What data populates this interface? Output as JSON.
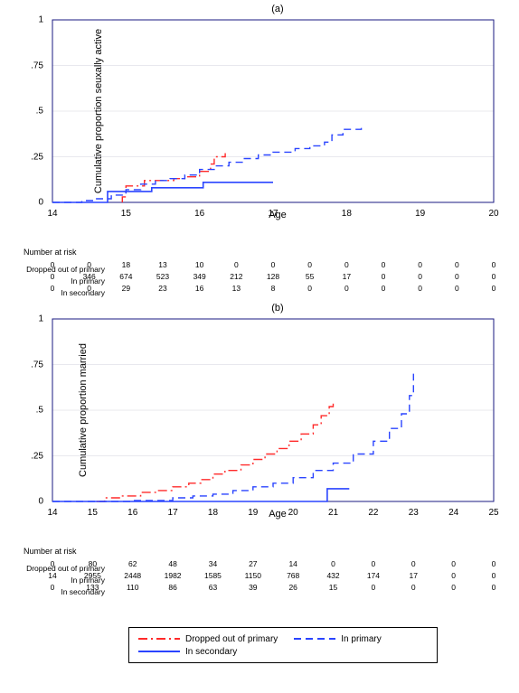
{
  "panel_a": {
    "title": "(a)",
    "type": "step-line",
    "y_label": "Cumulative proportion seuxally active",
    "x_label": "Age",
    "xlim": [
      14,
      20
    ],
    "ylim": [
      0,
      1
    ],
    "y_ticks": [
      "0",
      ".25",
      ".5",
      ".75",
      "1"
    ],
    "y_tick_vals": [
      0,
      0.25,
      0.5,
      0.75,
      1
    ],
    "x_ticks": [
      14,
      15,
      16,
      17,
      18,
      19,
      20
    ],
    "x_tick_step": 1,
    "background_color": "#ffffff",
    "frame_color": "#1a1a80",
    "grid_color": "#e8e8ee",
    "axis_fontsize": 10,
    "label_fontsize": 11,
    "series": [
      {
        "name": "dropped",
        "label": "Dropped out of primary",
        "color": "#ff2a2a",
        "style": "dash-dot",
        "line_width": 1.4,
        "points": [
          [
            14.95,
            0.0
          ],
          [
            14.95,
            0.03
          ],
          [
            15.0,
            0.03
          ],
          [
            15.0,
            0.09
          ],
          [
            15.25,
            0.09
          ],
          [
            15.25,
            0.12
          ],
          [
            15.5,
            0.12
          ],
          [
            15.65,
            0.13
          ],
          [
            15.8,
            0.14
          ],
          [
            16.0,
            0.17
          ],
          [
            16.15,
            0.21
          ],
          [
            16.2,
            0.25
          ],
          [
            16.35,
            0.27
          ]
        ]
      },
      {
        "name": "in_primary",
        "label": "In primary",
        "color": "#2a44ff",
        "style": "dashed",
        "line_width": 1.4,
        "points": [
          [
            14.0,
            0.0
          ],
          [
            14.4,
            0.01
          ],
          [
            14.6,
            0.02
          ],
          [
            14.8,
            0.04
          ],
          [
            15.0,
            0.07
          ],
          [
            15.2,
            0.1
          ],
          [
            15.4,
            0.12
          ],
          [
            15.6,
            0.13
          ],
          [
            15.8,
            0.15
          ],
          [
            16.0,
            0.18
          ],
          [
            16.2,
            0.2
          ],
          [
            16.4,
            0.22
          ],
          [
            16.6,
            0.24
          ],
          [
            16.8,
            0.26
          ],
          [
            17.0,
            0.275
          ],
          [
            17.3,
            0.295
          ],
          [
            17.5,
            0.31
          ],
          [
            17.7,
            0.33
          ],
          [
            17.8,
            0.37
          ],
          [
            17.95,
            0.4
          ],
          [
            18.2,
            0.41
          ]
        ]
      },
      {
        "name": "in_secondary",
        "label": "In secondary",
        "color": "#2a44ff",
        "style": "solid",
        "line_width": 1.6,
        "points": [
          [
            14.0,
            0.0
          ],
          [
            14.7,
            0.0
          ],
          [
            14.75,
            0.06
          ],
          [
            15.3,
            0.06
          ],
          [
            15.35,
            0.08
          ],
          [
            16.0,
            0.08
          ],
          [
            16.05,
            0.11
          ],
          [
            17.0,
            0.11
          ]
        ]
      }
    ],
    "risk_table": {
      "title": "Number at risk",
      "ages": [
        14.0,
        14.5,
        15.0,
        15.5,
        16.0,
        16.5,
        17.0,
        17.5,
        18.0,
        18.5,
        19.0,
        19.5,
        20.0
      ],
      "rows": [
        {
          "label": "Dropped out of primary",
          "values": [
            0,
            0,
            18,
            13,
            10,
            0,
            0,
            0,
            0,
            0,
            0,
            0,
            0
          ]
        },
        {
          "label": "In primary",
          "values": [
            0,
            346,
            674,
            523,
            349,
            212,
            128,
            55,
            17,
            0,
            0,
            0,
            0
          ]
        },
        {
          "label": "In secondary",
          "values": [
            0,
            0,
            29,
            23,
            16,
            13,
            8,
            0,
            0,
            0,
            0,
            0,
            0
          ]
        }
      ]
    }
  },
  "panel_b": {
    "title": "(b)",
    "type": "step-line",
    "y_label": "Cumulative proportion married",
    "x_label": "Age",
    "xlim": [
      14,
      25
    ],
    "ylim": [
      0,
      1
    ],
    "y_ticks": [
      "0",
      ".25",
      ".5",
      ".75",
      "1"
    ],
    "y_tick_vals": [
      0,
      0.25,
      0.5,
      0.75,
      1
    ],
    "x_ticks": [
      14,
      15,
      16,
      17,
      18,
      19,
      20,
      21,
      22,
      23,
      24,
      25
    ],
    "x_tick_step": 1,
    "background_color": "#ffffff",
    "frame_color": "#1a1a80",
    "grid_color": "#e8e8ee",
    "axis_fontsize": 10,
    "label_fontsize": 11,
    "series": [
      {
        "name": "dropped",
        "label": "Dropped out of primary",
        "color": "#ff2a2a",
        "style": "dash-dot",
        "line_width": 1.4,
        "points": [
          [
            15.1,
            0.0
          ],
          [
            15.3,
            0.02
          ],
          [
            15.7,
            0.03
          ],
          [
            16.2,
            0.05
          ],
          [
            16.6,
            0.06
          ],
          [
            17.0,
            0.08
          ],
          [
            17.4,
            0.1
          ],
          [
            17.7,
            0.12
          ],
          [
            18.0,
            0.15
          ],
          [
            18.3,
            0.17
          ],
          [
            18.7,
            0.2
          ],
          [
            19.0,
            0.23
          ],
          [
            19.3,
            0.26
          ],
          [
            19.6,
            0.29
          ],
          [
            19.9,
            0.33
          ],
          [
            20.2,
            0.37
          ],
          [
            20.5,
            0.42
          ],
          [
            20.7,
            0.47
          ],
          [
            20.9,
            0.52
          ],
          [
            21.0,
            0.55
          ]
        ]
      },
      {
        "name": "in_primary",
        "label": "In primary",
        "color": "#2a44ff",
        "style": "dashed",
        "line_width": 1.4,
        "points": [
          [
            14.0,
            0.0
          ],
          [
            16.0,
            0.005
          ],
          [
            17.0,
            0.02
          ],
          [
            17.5,
            0.03
          ],
          [
            18.0,
            0.04
          ],
          [
            18.5,
            0.06
          ],
          [
            19.0,
            0.08
          ],
          [
            19.5,
            0.1
          ],
          [
            20.0,
            0.13
          ],
          [
            20.5,
            0.17
          ],
          [
            21.0,
            0.21
          ],
          [
            21.5,
            0.26
          ],
          [
            22.0,
            0.33
          ],
          [
            22.4,
            0.4
          ],
          [
            22.7,
            0.48
          ],
          [
            22.9,
            0.58
          ],
          [
            23.0,
            0.7
          ]
        ]
      },
      {
        "name": "in_secondary",
        "label": "In secondary",
        "color": "#2a44ff",
        "style": "solid",
        "line_width": 1.6,
        "points": [
          [
            14.0,
            0.0
          ],
          [
            20.8,
            0.0
          ],
          [
            20.85,
            0.07
          ],
          [
            21.4,
            0.07
          ]
        ]
      }
    ],
    "risk_table": {
      "title": "Number at risk",
      "ages": [
        14,
        15,
        16,
        17,
        18,
        19,
        20,
        21,
        22,
        23,
        24,
        25
      ],
      "rows": [
        {
          "label": "Dropped out of primary",
          "values": [
            0,
            80,
            62,
            48,
            34,
            27,
            14,
            0,
            0,
            0,
            0,
            0
          ]
        },
        {
          "label": "In primary",
          "values": [
            14,
            2955,
            2448,
            1982,
            1585,
            1150,
            768,
            432,
            174,
            17,
            0,
            0
          ]
        },
        {
          "label": "In secondary",
          "values": [
            0,
            133,
            110,
            86,
            63,
            39,
            26,
            15,
            0,
            0,
            0,
            0
          ]
        }
      ]
    }
  },
  "legend": {
    "items": [
      {
        "label": "Dropped out of primary",
        "color": "#ff2a2a",
        "style": "dash-dot"
      },
      {
        "label": "In primary",
        "color": "#2a44ff",
        "style": "dashed"
      },
      {
        "label": "In secondary",
        "color": "#2a44ff",
        "style": "solid"
      }
    ]
  }
}
